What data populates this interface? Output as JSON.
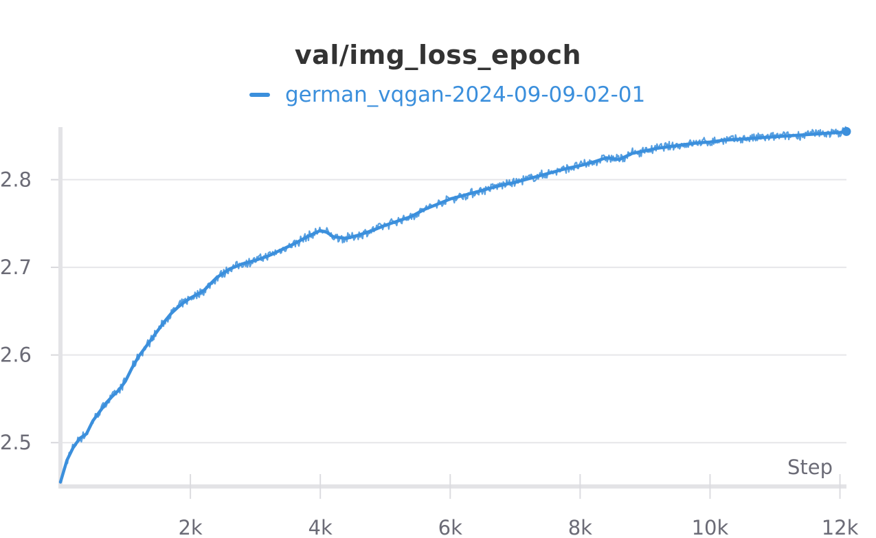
{
  "chart_data": {
    "type": "line",
    "title": "val/img_loss_epoch",
    "xlabel": "Step",
    "ylabel": "",
    "xlim": [
      0,
      12100
    ],
    "ylim": [
      2.45,
      2.86
    ],
    "x_ticks": [
      2000,
      4000,
      6000,
      8000,
      10000,
      12000
    ],
    "x_tick_labels": [
      "2k",
      "4k",
      "6k",
      "8k",
      "10k",
      "12k"
    ],
    "y_ticks": [
      2.5,
      2.6,
      2.7,
      2.8
    ],
    "y_tick_labels": [
      "2.5",
      "2.6",
      "2.7",
      "2.8"
    ],
    "grid": true,
    "legend_position": "top-center",
    "series": [
      {
        "name": "german_vqgan-2024-09-09-02-01",
        "color": "#3b8fdc",
        "x": [
          0,
          100,
          200,
          300,
          400,
          500,
          600,
          700,
          800,
          900,
          1000,
          1100,
          1200,
          1300,
          1400,
          1500,
          1600,
          1700,
          1800,
          1900,
          2000,
          2200,
          2400,
          2600,
          2800,
          3000,
          3200,
          3400,
          3600,
          3800,
          4000,
          4100,
          4200,
          4400,
          4600,
          4800,
          5000,
          5200,
          5400,
          5600,
          5800,
          6000,
          6200,
          6400,
          6600,
          6800,
          7000,
          7200,
          7400,
          7600,
          7800,
          8000,
          8200,
          8400,
          8600,
          8800,
          9000,
          9200,
          9400,
          9600,
          9800,
          10000,
          10200,
          10400,
          10600,
          10800,
          11000,
          11200,
          11400,
          11600,
          11800,
          12000,
          12100
        ],
        "values": [
          2.455,
          2.48,
          2.495,
          2.505,
          2.51,
          2.525,
          2.535,
          2.545,
          2.553,
          2.56,
          2.57,
          2.585,
          2.598,
          2.608,
          2.618,
          2.628,
          2.638,
          2.647,
          2.654,
          2.66,
          2.665,
          2.673,
          2.688,
          2.698,
          2.704,
          2.708,
          2.713,
          2.72,
          2.727,
          2.735,
          2.742,
          2.74,
          2.735,
          2.733,
          2.737,
          2.742,
          2.748,
          2.753,
          2.758,
          2.766,
          2.772,
          2.778,
          2.782,
          2.786,
          2.79,
          2.794,
          2.797,
          2.801,
          2.805,
          2.809,
          2.813,
          2.816,
          2.82,
          2.825,
          2.823,
          2.83,
          2.833,
          2.836,
          2.838,
          2.84,
          2.842,
          2.843,
          2.845,
          2.846,
          2.847,
          2.848,
          2.849,
          2.85,
          2.851,
          2.852,
          2.853,
          2.854,
          2.855
        ]
      }
    ]
  }
}
